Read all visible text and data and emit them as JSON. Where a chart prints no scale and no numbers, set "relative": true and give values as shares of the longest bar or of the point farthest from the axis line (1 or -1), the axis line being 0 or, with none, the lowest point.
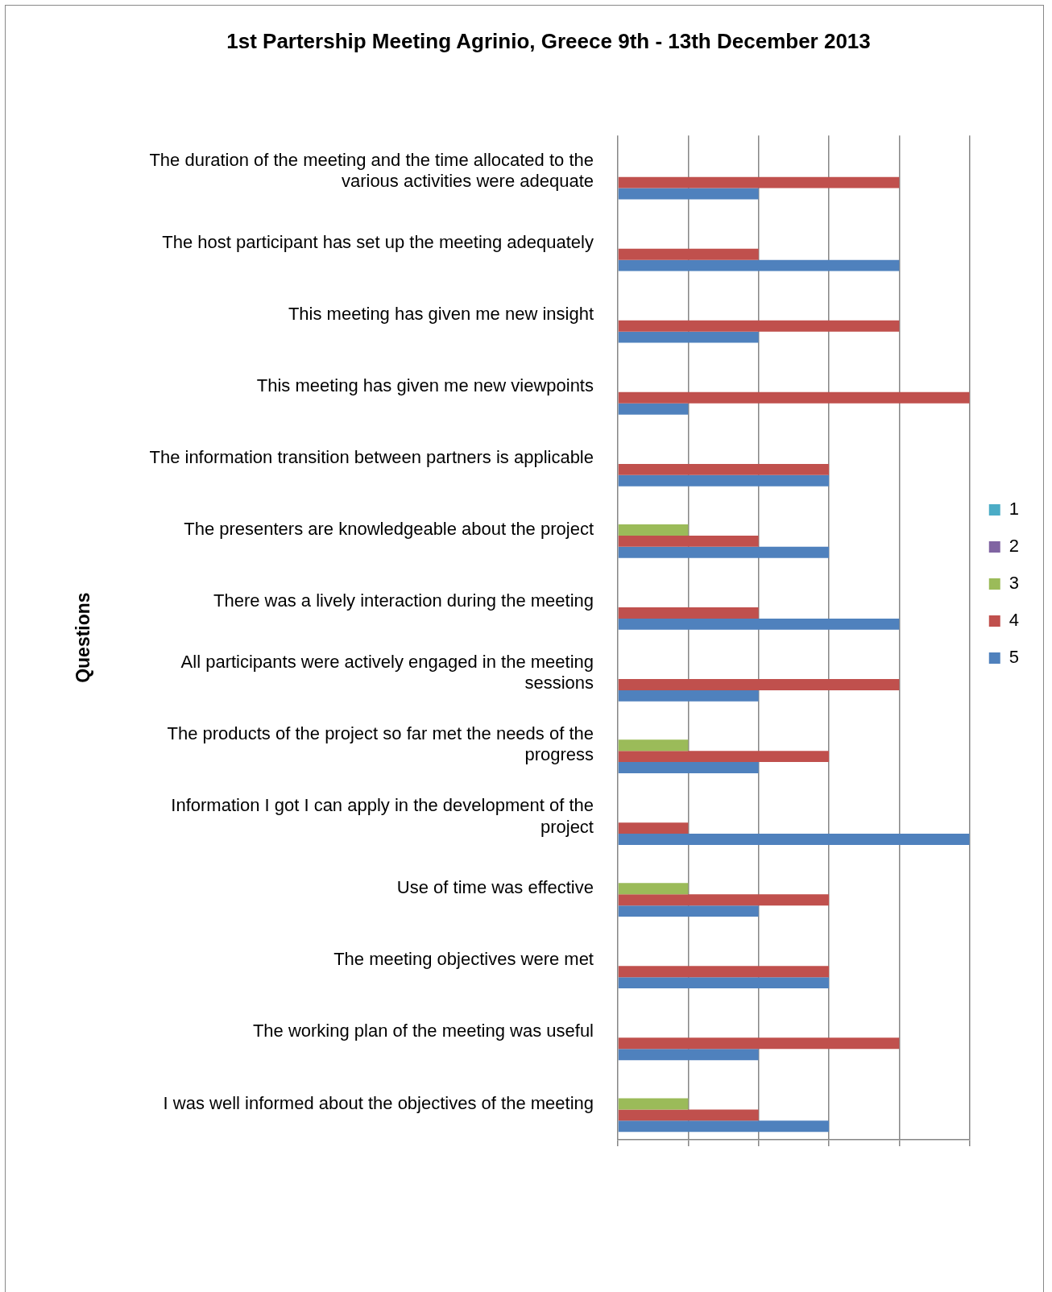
{
  "chart_data": {
    "type": "bar",
    "orientation": "horizontal",
    "relative": true,
    "title": "1st Partership Meeting Agrinio, Greece 9th - 13th December 2013",
    "ylabel": "Questions",
    "legend": "right",
    "grid": "x",
    "categories": [
      "The duration of the meeting and the time allocated to the various activities were adequate",
      "The host participant has set up the meeting adequately",
      "This meeting has given me new insight",
      "This meeting has given me new viewpoints",
      "The information transition between partners is applicable",
      "The presenters are knowledgeable about the project",
      "There was a lively interaction during the meeting",
      "All participants were actively engaged in the meeting sessions",
      "The products of the project so far met the needs of the progress",
      "Information I got I can apply in the development of the project",
      "Use of time was effective",
      "The meeting objectives were met",
      "The working plan of the meeting was useful",
      "I was well informed about the objectives of the meeting"
    ],
    "series": [
      {
        "name": "1",
        "color": "#4bacc6",
        "values": [
          0,
          0,
          0,
          0,
          0,
          0,
          0,
          0,
          0,
          0,
          0,
          0,
          0,
          0
        ]
      },
      {
        "name": "2",
        "color": "#8064a2",
        "values": [
          0,
          0,
          0,
          0,
          0,
          0,
          0,
          0,
          0,
          0,
          0,
          0,
          0,
          0
        ]
      },
      {
        "name": "3",
        "color": "#9bbb59",
        "values": [
          0,
          0,
          0,
          0,
          0,
          0.2,
          0,
          0,
          0.2,
          0,
          0.2,
          0,
          0,
          0.2
        ]
      },
      {
        "name": "4",
        "color": "#c0504d",
        "values": [
          0.8,
          0.4,
          0.8,
          1,
          0.6,
          0.4,
          0.4,
          0.8,
          0.6,
          0.2,
          0.6,
          0.6,
          0.8,
          0.4
        ]
      },
      {
        "name": "5",
        "color": "#4f81bd",
        "values": [
          0.4,
          0.8,
          0.4,
          0.2,
          0.6,
          0.6,
          0.8,
          0.4,
          0.4,
          1,
          0.4,
          0.6,
          0.4,
          0.6
        ]
      }
    ]
  }
}
